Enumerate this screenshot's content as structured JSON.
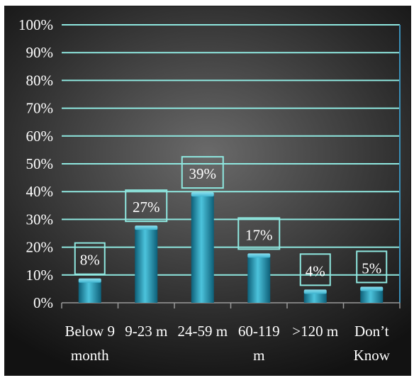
{
  "chart_data": {
    "type": "bar",
    "categories": [
      [
        "Below 9",
        "month"
      ],
      [
        "9-23 m"
      ],
      [
        "24-59 m"
      ],
      [
        "60-119",
        "m"
      ],
      [
        ">120 m"
      ],
      [
        "Don’t",
        "Know"
      ]
    ],
    "values": [
      8,
      27,
      39,
      17,
      4,
      5
    ],
    "data_labels": [
      "8%",
      "27%",
      "39%",
      "17%",
      "4%",
      "5%"
    ],
    "yticks": [
      "0%",
      "10%",
      "20%",
      "30%",
      "40%",
      "50%",
      "60%",
      "70%",
      "80%",
      "90%",
      "100%"
    ],
    "ylim": [
      0,
      100
    ],
    "grid": true,
    "title": "",
    "xlabel": "",
    "ylabel": ""
  },
  "colors": {
    "gridline": "#8fe8e0",
    "bar_light": "#4cc3dc",
    "bar_mid": "#1f93b3",
    "bar_dark": "#0d5f78",
    "label_box": "#8fe8e0",
    "text": "#ffffff"
  }
}
